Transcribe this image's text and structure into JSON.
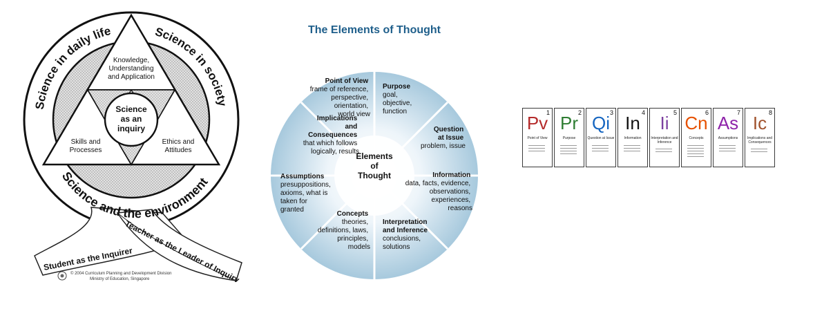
{
  "science_diagram": {
    "arc_top_left": "Science in daily life",
    "arc_top_right": "Science in society",
    "arc_bottom": "Science and the environment",
    "corner_top": "Knowledge, Understanding and Application",
    "corner_left": "Skills and Processes",
    "corner_right": "Ethics and Attitudes",
    "center": "Science as an inquiry",
    "ribbon_left": "Student as the Inquirer",
    "ribbon_right": "Teacher as the Leader of Inquiry",
    "credit_line1": "© 2004 Curriculum Planning and Development Division",
    "credit_line2": "Ministry of Education, Singapore"
  },
  "elements_wheel": {
    "title": "The Elements of Thought",
    "center": "Elements of Thought",
    "segments": [
      {
        "heading": "Point of View",
        "body": "frame of reference, perspective, orientation, world view"
      },
      {
        "heading": "Purpose",
        "body": "goal, objective, function"
      },
      {
        "heading": "Question at Issue",
        "body": "problem, issue"
      },
      {
        "heading": "Information",
        "body": "data, facts, evidence, observations, experiences, reasons"
      },
      {
        "heading": "Interpretation and Inference",
        "body": "conclusions, solutions"
      },
      {
        "heading": "Concepts",
        "body": "theories, definitions, laws, principles, models"
      },
      {
        "heading": "Assumptions",
        "body": "presuppositions, axioms, what is taken for granted"
      },
      {
        "heading": "Implications and Consequences",
        "body": "that which follows logically, results"
      }
    ]
  },
  "element_table": {
    "tiles": [
      {
        "number": "1",
        "symbol": "Pv",
        "name": "Point of View",
        "color": "#b52b2b"
      },
      {
        "number": "2",
        "symbol": "Pr",
        "name": "Purpose",
        "color": "#2e7d32"
      },
      {
        "number": "3",
        "symbol": "Qi",
        "name": "Question at Issue",
        "color": "#1565c0"
      },
      {
        "number": "4",
        "symbol": "In",
        "name": "Information",
        "color": "#111111"
      },
      {
        "number": "5",
        "symbol": "Ii",
        "name": "Interpretation and Inference",
        "color": "#7b3fa0"
      },
      {
        "number": "6",
        "symbol": "Cn",
        "name": "Concepts",
        "color": "#e65100"
      },
      {
        "number": "7",
        "symbol": "As",
        "name": "Assumptions",
        "color": "#8e24aa"
      },
      {
        "number": "8",
        "symbol": "Ic",
        "name": "Implications and Consequences",
        "color": "#a0522d"
      }
    ]
  }
}
